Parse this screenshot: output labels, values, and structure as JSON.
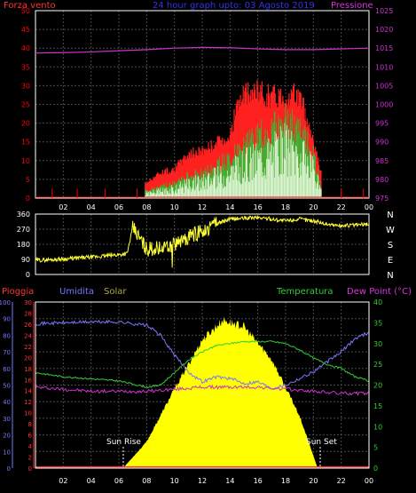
{
  "header": {
    "left_label": "Forza vento",
    "title": "24 hour graph upto: 03 Agosto 2019",
    "right_label": "Pressione"
  },
  "colors": {
    "wind": "#ff0000",
    "gust": "#ff2020",
    "wind_inner": "#ddffdd",
    "wind_mid": "#33bb33",
    "pressure": "#cc33cc",
    "direction": "#ffff33",
    "rain": "#ff3333",
    "humidity": "#7777ff",
    "solar_label": "#aaaa44",
    "solar": "#ffff00",
    "temperature": "#33cc33",
    "dewpoint": "#cc33cc",
    "grid": "#4a4a4a",
    "axis": "#ffffff"
  },
  "chart_data": [
    {
      "type": "line",
      "title": "24 hour graph upto: 03 Agosto 2019",
      "x_ticks": [
        "02",
        "04",
        "06",
        "08",
        "10",
        "12",
        "14",
        "16",
        "18",
        "20",
        "22",
        "00"
      ],
      "left_axis": {
        "label": "Forza vento",
        "ticks": [
          0,
          5,
          10,
          15,
          20,
          25,
          30,
          35,
          40,
          45,
          50
        ],
        "ylim": [
          0,
          50
        ]
      },
      "right_axis": {
        "label": "Pressione",
        "ticks": [
          975,
          980,
          985,
          990,
          995,
          1000,
          1005,
          1010,
          1015,
          1020,
          1025
        ],
        "ylim": [
          975,
          1025
        ]
      },
      "series": [
        {
          "name": "Pressione",
          "x": [
            0,
            2,
            4,
            6,
            8,
            10,
            12,
            14,
            16,
            18,
            20,
            22,
            24
          ],
          "values": [
            1013.7,
            1013.8,
            1014.0,
            1014.3,
            1014.6,
            1015.0,
            1015.2,
            1015.1,
            1014.8,
            1014.6,
            1014.6,
            1014.8,
            1015.0
          ]
        },
        {
          "name": "gust",
          "x": [
            7.9,
            9,
            10,
            11,
            12,
            13,
            14,
            14.5,
            15,
            16,
            17,
            18,
            19,
            20,
            20.6
          ],
          "values": [
            4,
            7,
            8,
            12,
            13,
            15,
            17,
            25,
            28,
            29,
            28,
            28,
            28,
            16,
            6
          ]
        },
        {
          "name": "wind",
          "x": [
            7.9,
            9,
            10,
            11,
            12,
            13,
            14,
            15,
            16,
            17,
            18,
            19,
            20,
            20.6
          ],
          "values": [
            2,
            3,
            4,
            6,
            7,
            9,
            11,
            14,
            17,
            19,
            22,
            19,
            12,
            3
          ]
        }
      ]
    },
    {
      "type": "line",
      "left_axis": {
        "ticks": [
          0,
          90,
          180,
          270,
          360
        ],
        "ylim": [
          0,
          360
        ]
      },
      "right_axis": {
        "ticks": [
          "N",
          "W",
          "S",
          "E",
          "N"
        ]
      },
      "series": [
        {
          "name": "direction",
          "x": [
            0,
            1,
            2,
            3,
            4,
            5,
            6,
            6.6,
            7,
            8,
            9,
            10,
            11,
            12,
            13,
            14,
            15,
            16,
            17,
            18,
            19,
            20,
            21,
            22,
            23,
            24
          ],
          "values": [
            85,
            88,
            92,
            98,
            103,
            110,
            118,
            125,
            280,
            150,
            160,
            180,
            220,
            260,
            300,
            330,
            335,
            340,
            330,
            320,
            330,
            320,
            300,
            290,
            295,
            300
          ]
        }
      ]
    },
    {
      "type": "line",
      "x_ticks": [
        "02",
        "04",
        "06",
        "08",
        "10",
        "12",
        "14",
        "16",
        "18",
        "20",
        "22",
        "00"
      ],
      "labels": {
        "rain": "Pioggia",
        "humidity": "Umidita",
        "solar": "Solar",
        "temperature": "Temperatura",
        "dewpoint": "Dew Point (°C)"
      },
      "annotations": [
        "Sun Rise",
        "Sun Set"
      ],
      "axes": {
        "humidity": {
          "ticks": [
            0,
            10,
            20,
            30,
            40,
            50,
            60,
            70,
            80,
            90,
            100
          ],
          "ylim": [
            0,
            100
          ]
        },
        "rain": {
          "ticks": [
            0,
            2,
            4,
            6,
            8,
            10,
            12,
            14,
            16,
            18,
            20,
            22,
            24,
            26,
            28,
            30
          ],
          "ylim": [
            0,
            30
          ]
        },
        "temperature": {
          "ticks": [
            0,
            5,
            10,
            15,
            20,
            25,
            30,
            35,
            40
          ],
          "ylim": [
            0,
            40
          ]
        }
      },
      "series": [
        {
          "name": "Umidita",
          "x": [
            0,
            2,
            4,
            6,
            8,
            9,
            10,
            11,
            12,
            13,
            14,
            15,
            16,
            17,
            18,
            19,
            20,
            21,
            22,
            23,
            24
          ],
          "values": [
            87,
            87.5,
            88,
            88,
            86,
            80,
            68,
            58,
            52,
            55,
            54,
            51,
            52,
            48,
            50,
            54,
            58,
            64,
            70,
            78,
            82
          ]
        },
        {
          "name": "Temperatura",
          "x": [
            0,
            2,
            4,
            6,
            8,
            9,
            10,
            11,
            12,
            13,
            14,
            15,
            16,
            17,
            18,
            19,
            20,
            21,
            22,
            23,
            24
          ],
          "values": [
            23,
            22,
            21.5,
            21,
            19.5,
            20,
            23,
            26,
            28,
            29.5,
            30,
            30.5,
            30.5,
            30.5,
            30,
            28.5,
            26.5,
            25,
            24,
            22,
            21
          ]
        },
        {
          "name": "Dew Point",
          "x": [
            0,
            2,
            4,
            6,
            8,
            10,
            12,
            14,
            16,
            18,
            20,
            22,
            24
          ],
          "values": [
            19.5,
            19,
            18.5,
            18.5,
            18.5,
            19,
            19.5,
            19.5,
            19.5,
            19,
            18.5,
            18,
            18
          ]
        },
        {
          "name": "Solar",
          "x": [
            0,
            6.3,
            8,
            10,
            12,
            13.5,
            15,
            17,
            19,
            20.3,
            24
          ],
          "values": [
            0,
            0,
            40,
            120,
            195,
            225,
            215,
            165,
            80,
            0,
            0
          ]
        },
        {
          "name": "Pioggia",
          "x": [
            0,
            24
          ],
          "values": [
            0,
            0
          ]
        }
      ]
    }
  ]
}
